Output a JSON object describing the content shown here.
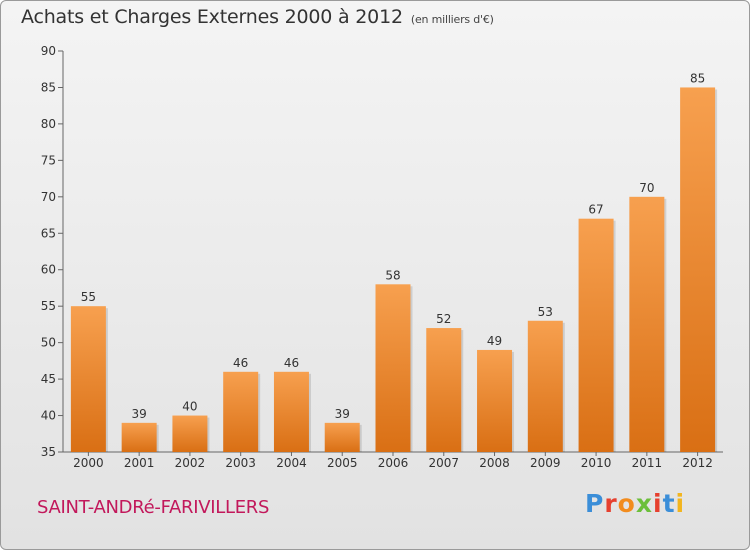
{
  "chart_data": {
    "type": "bar",
    "title": "Achats et Charges Externes 2000 à 2012",
    "subtitle": "(en milliers d'€)",
    "categories": [
      "2000",
      "2001",
      "2002",
      "2003",
      "2004",
      "2005",
      "2006",
      "2007",
      "2008",
      "2009",
      "2010",
      "2011",
      "2012"
    ],
    "values": [
      55,
      39,
      40,
      46,
      46,
      39,
      58,
      52,
      49,
      53,
      67,
      70,
      85
    ],
    "ylim": [
      35,
      90
    ],
    "yticks": [
      35,
      40,
      45,
      50,
      55,
      60,
      65,
      70,
      75,
      80,
      85,
      90
    ],
    "grid": false,
    "bar_color_top": "#f7a04f",
    "bar_color_bottom": "#d96f14"
  },
  "footer": {
    "commune": "SAINT-ANDRé-FARIVILLERS",
    "brand": "Proxiti",
    "brand_colors": [
      "#3b8ed8",
      "#e6402f",
      "#f28c1e",
      "#6cbf3b",
      "#e6402f",
      "#3b8ed8",
      "#f2b51e"
    ]
  }
}
